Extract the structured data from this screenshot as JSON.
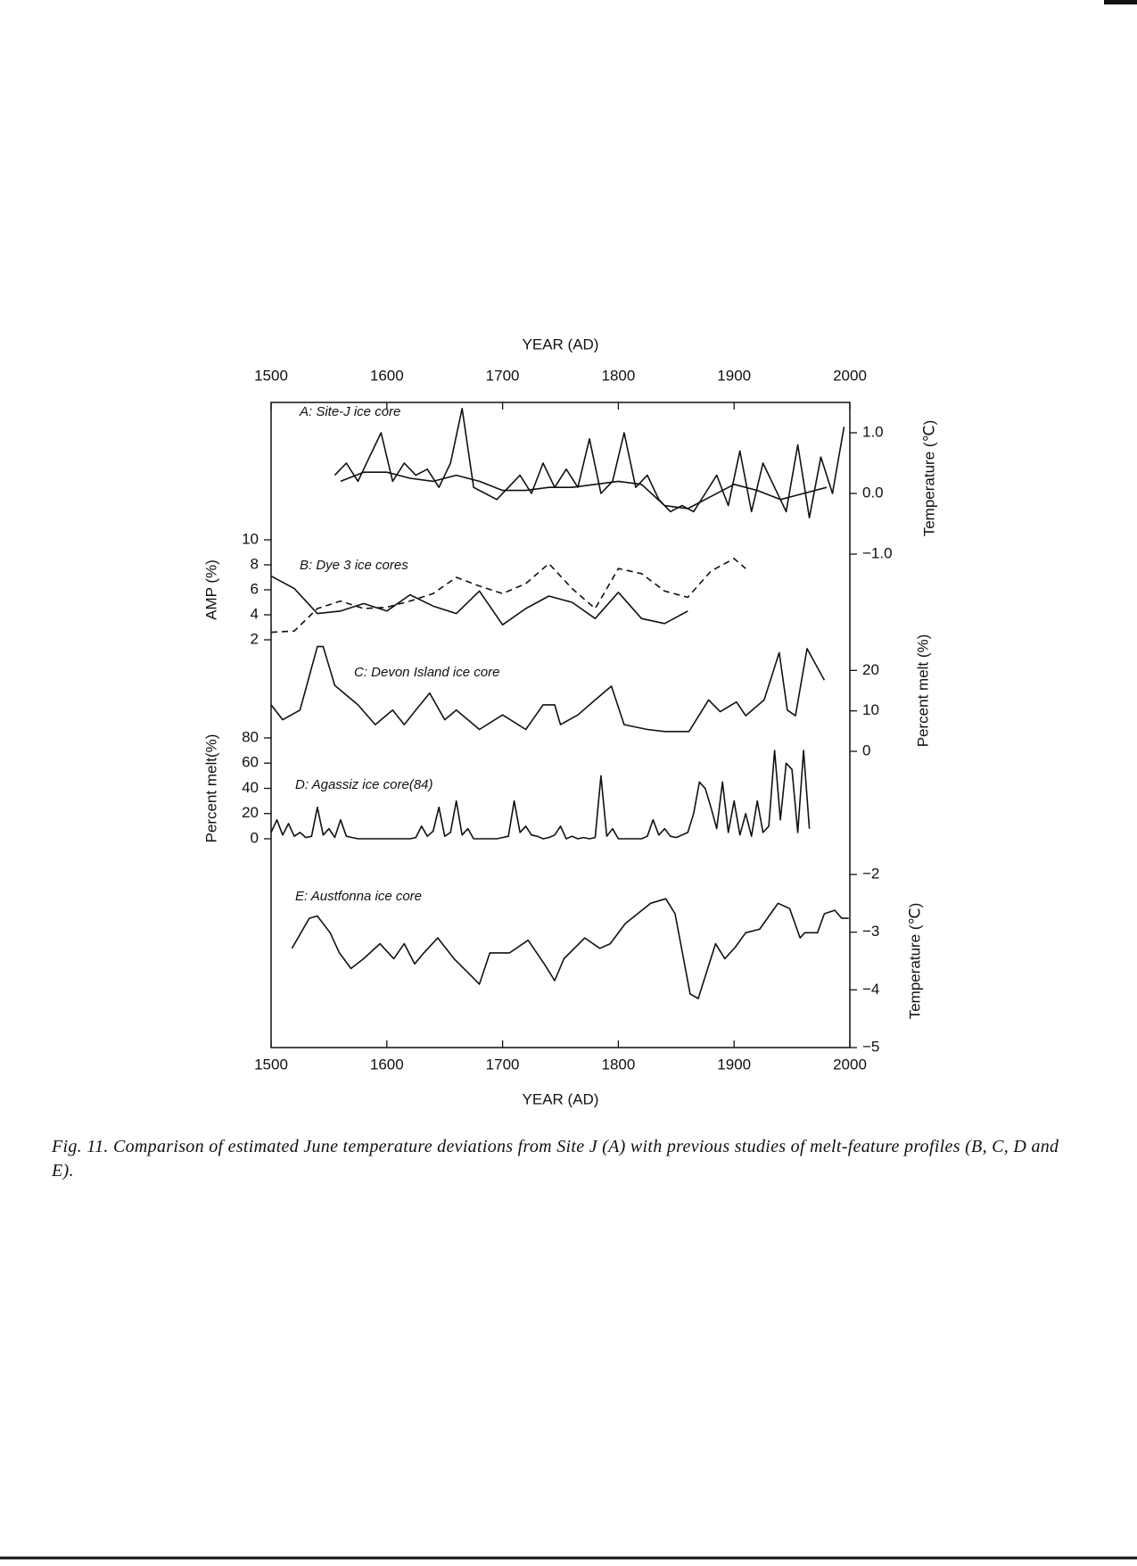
{
  "chart_data": [
    {
      "type": "line",
      "label": "A: Site-J ice core",
      "ylabel": "Temperature (℃)",
      "yaxis": "right",
      "xlabel": "YEAR (AD)",
      "xaxis": "top",
      "xlim": [
        1500,
        2000
      ],
      "xticks": [
        1500,
        1600,
        1700,
        1800,
        1900,
        2000
      ],
      "ylim": [
        -1.0,
        1.5
      ],
      "yticks": [
        {
          "value": 1.0,
          "label": "1.0"
        },
        {
          "value": 0.0,
          "label": "0.0"
        },
        {
          "value": -1.0,
          "label": "−1.0"
        }
      ],
      "series": [
        {
          "color": "#111111",
          "dash": false,
          "x": [
            1555,
            1565,
            1575,
            1585,
            1595,
            1605,
            1615,
            1625,
            1635,
            1645,
            1655,
            1665,
            1675,
            1685,
            1695,
            1705,
            1715,
            1725,
            1735,
            1745,
            1755,
            1765,
            1775,
            1785,
            1795,
            1805,
            1815,
            1825,
            1835,
            1845,
            1855,
            1865,
            1875,
            1885,
            1895,
            1905,
            1915,
            1925,
            1935,
            1945,
            1955,
            1965,
            1975,
            1985,
            1995
          ],
          "values": [
            0.3,
            0.5,
            0.2,
            0.6,
            1.0,
            0.2,
            0.5,
            0.3,
            0.4,
            0.1,
            0.5,
            1.4,
            0.1,
            0.0,
            -0.1,
            0.1,
            0.3,
            0.0,
            0.5,
            0.1,
            0.4,
            0.1,
            0.9,
            0.0,
            0.2,
            1.0,
            0.1,
            0.3,
            -0.1,
            -0.3,
            -0.2,
            -0.3,
            0.0,
            0.3,
            -0.2,
            0.7,
            -0.3,
            0.5,
            0.1,
            -0.3,
            0.8,
            -0.4,
            0.6,
            0.0,
            1.1
          ]
        },
        {
          "color": "#111111",
          "dash": false,
          "x": [
            1560,
            1580,
            1600,
            1620,
            1640,
            1660,
            1680,
            1700,
            1720,
            1740,
            1760,
            1780,
            1800,
            1820,
            1840,
            1860,
            1880,
            1900,
            1920,
            1940,
            1960,
            1980
          ],
          "values": [
            0.2,
            0.35,
            0.35,
            0.25,
            0.2,
            0.3,
            0.2,
            0.05,
            0.05,
            0.1,
            0.1,
            0.15,
            0.2,
            0.15,
            -0.2,
            -0.25,
            -0.05,
            0.15,
            0.05,
            -0.1,
            0.0,
            0.1
          ]
        }
      ]
    },
    {
      "type": "line",
      "label": "B: Dye 3 ice cores",
      "ylabel": "AMP (%)",
      "yaxis": "left",
      "xlim": [
        1500,
        2000
      ],
      "ylim": [
        2,
        10
      ],
      "yticks": [
        10,
        8,
        6,
        4,
        2
      ],
      "series": [
        {
          "color": "#111111",
          "dash": false,
          "x": [
            1500,
            1520,
            1540,
            1560,
            1580,
            1600,
            1620,
            1640,
            1660,
            1680,
            1700,
            1720,
            1740,
            1760,
            1780,
            1800,
            1820,
            1840,
            1860
          ],
          "values": [
            7.1,
            6.1,
            4.1,
            4.3,
            4.9,
            4.3,
            5.6,
            4.7,
            4.1,
            5.9,
            3.2,
            4.5,
            5.5,
            5.0,
            3.7,
            5.8,
            3.7,
            3.3,
            4.3
          ]
        },
        {
          "color": "#111111",
          "dash": true,
          "x": [
            1500,
            1520,
            1540,
            1560,
            1580,
            1600,
            1620,
            1640,
            1660,
            1680,
            1700,
            1720,
            1740,
            1760,
            1780,
            1800,
            1820,
            1840,
            1860,
            1880,
            1900,
            1910
          ],
          "values": [
            2.6,
            2.7,
            4.5,
            5.1,
            4.5,
            4.6,
            5.1,
            5.7,
            7.0,
            6.3,
            5.7,
            6.5,
            8.1,
            6.1,
            4.5,
            7.7,
            7.3,
            5.9,
            5.4,
            7.5,
            8.5,
            7.7
          ]
        }
      ]
    },
    {
      "type": "line",
      "label": "C: Devon Island ice core",
      "ylabel": "Percent melt (%)",
      "yaxis": "right",
      "xlim": [
        1500,
        2000
      ],
      "ylim": [
        0,
        30
      ],
      "yticks": [
        20,
        10,
        0
      ],
      "series": [
        {
          "color": "#111111",
          "dash": false,
          "x": [
            1500,
            1510,
            1525,
            1540,
            1545,
            1555,
            1575,
            1590,
            1605,
            1615,
            1625,
            1637,
            1650,
            1660,
            1680,
            1700,
            1720,
            1735,
            1745,
            1750,
            1765,
            1780,
            1794,
            1805,
            1825,
            1840,
            1861,
            1878,
            1888,
            1902,
            1910,
            1926,
            1939,
            1946,
            1953,
            1963,
            1978
          ],
          "values": [
            11.5,
            7.8,
            10.2,
            25.9,
            25.9,
            16.3,
            11.5,
            6.6,
            10.2,
            6.6,
            10.2,
            14.4,
            7.8,
            10.2,
            5.4,
            9.0,
            5.4,
            11.5,
            11.5,
            6.6,
            9.0,
            12.7,
            16.1,
            6.6,
            5.4,
            4.9,
            4.9,
            12.7,
            9.8,
            12.2,
            8.8,
            12.7,
            24.4,
            10.2,
            8.8,
            25.4,
            17.6
          ]
        }
      ]
    },
    {
      "type": "line",
      "label": "D: Agassiz ice core(84)",
      "ylabel": "Percent melt(%)",
      "yaxis": "left",
      "xlim": [
        1500,
        2000
      ],
      "ylim": [
        0,
        80
      ],
      "yticks": [
        80,
        60,
        40,
        20,
        0
      ],
      "series": [
        {
          "color": "#111111",
          "dash": false,
          "x": [
            1500,
            1505,
            1510,
            1515,
            1520,
            1525,
            1530,
            1535,
            1540,
            1545,
            1550,
            1555,
            1560,
            1565,
            1570,
            1575,
            1580,
            1585,
            1590,
            1595,
            1600,
            1605,
            1610,
            1615,
            1620,
            1625,
            1630,
            1635,
            1640,
            1645,
            1650,
            1655,
            1660,
            1665,
            1670,
            1675,
            1680,
            1685,
            1690,
            1695,
            1700,
            1705,
            1710,
            1715,
            1720,
            1725,
            1730,
            1735,
            1740,
            1745,
            1750,
            1755,
            1760,
            1765,
            1770,
            1775,
            1780,
            1785,
            1790,
            1795,
            1800,
            1805,
            1810,
            1815,
            1820,
            1825,
            1830,
            1835,
            1840,
            1845,
            1850,
            1855,
            1860,
            1865,
            1870,
            1875,
            1880,
            1885,
            1890,
            1895,
            1900,
            1905,
            1910,
            1915,
            1920,
            1925,
            1930,
            1935,
            1940,
            1945,
            1950,
            1955,
            1960,
            1965
          ],
          "values": [
            5,
            15,
            3,
            12,
            2,
            5,
            1,
            2,
            25,
            3,
            8,
            1,
            15,
            2,
            1,
            0,
            0,
            0,
            0,
            0,
            0,
            0,
            0,
            0,
            0,
            1,
            10,
            2,
            6,
            25,
            2,
            5,
            30,
            3,
            8,
            0,
            0,
            0,
            0,
            0,
            1,
            2,
            30,
            5,
            10,
            3,
            2,
            0,
            1,
            3,
            10,
            0,
            2,
            0,
            1,
            0,
            1,
            50,
            2,
            8,
            0,
            0,
            0,
            0,
            0,
            2,
            15,
            3,
            8,
            2,
            1,
            3,
            5,
            20,
            45,
            40,
            25,
            8,
            45,
            5,
            30,
            3,
            20,
            2,
            30,
            5,
            10,
            70,
            15,
            60,
            55,
            5,
            70,
            8
          ]
        }
      ]
    },
    {
      "type": "line",
      "label": "E: Austfonna ice core",
      "ylabel": "Temperature (℃)",
      "yaxis": "right",
      "xlabel": "YEAR (AD)",
      "xaxis": "bottom",
      "xlim": [
        1500,
        2000
      ],
      "xticks": [
        1500,
        1600,
        1700,
        1800,
        1900,
        2000
      ],
      "ylim": [
        -5,
        -2
      ],
      "yticks": [
        {
          "value": -2,
          "label": "−2"
        },
        {
          "value": -3,
          "label": "−3"
        },
        {
          "value": -4,
          "label": "−4"
        },
        {
          "value": -5,
          "label": "−5"
        }
      ],
      "series": [
        {
          "color": "#111111",
          "dash": false,
          "x": [
            1518,
            1533,
            1540,
            1551,
            1559,
            1569,
            1580,
            1594,
            1606,
            1615,
            1624,
            1632,
            1644,
            1658,
            1671,
            1680,
            1689,
            1706,
            1722,
            1736,
            1745,
            1753,
            1771,
            1784,
            1793,
            1806,
            1828,
            1841,
            1849,
            1862,
            1869,
            1884,
            1892,
            1901,
            1910,
            1922,
            1938,
            1948,
            1957,
            1961,
            1972,
            1978,
            1987,
            1993,
            1999
          ],
          "values": [
            -3.28,
            -2.76,
            -2.72,
            -3.01,
            -3.36,
            -3.63,
            -3.46,
            -3.2,
            -3.46,
            -3.2,
            -3.55,
            -3.36,
            -3.1,
            -3.46,
            -3.72,
            -3.9,
            -3.36,
            -3.36,
            -3.14,
            -3.55,
            -3.84,
            -3.46,
            -3.1,
            -3.28,
            -3.2,
            -2.85,
            -2.5,
            -2.42,
            -2.68,
            -4.07,
            -4.15,
            -3.2,
            -3.46,
            -3.26,
            -3.01,
            -2.95,
            -2.5,
            -2.59,
            -3.1,
            -3.01,
            -3.01,
            -2.68,
            -2.62,
            -2.76,
            -2.76
          ]
        }
      ]
    }
  ],
  "caption": "Fig. 11. Comparison of estimated June temperature deviations from Site J (A) with previous studies of melt-feature profiles (B, C, D and E)."
}
